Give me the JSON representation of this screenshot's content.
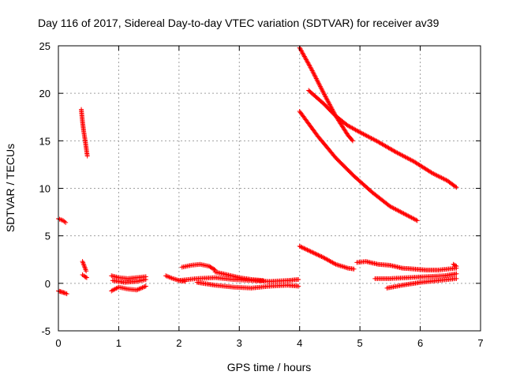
{
  "chart_data": {
    "type": "scatter",
    "title": "Day 116 of 2017, Sidereal Day-to-day VTEC variation (SDTVAR) for receiver av39",
    "xlabel": "GPS time / hours",
    "ylabel": "SDTVAR / TECUs",
    "xlim": [
      0,
      7
    ],
    "ylim": [
      -5,
      25
    ],
    "xticks": [
      0,
      1,
      2,
      3,
      4,
      5,
      6,
      7
    ],
    "yticks": [
      -5,
      0,
      5,
      10,
      15,
      20,
      25
    ],
    "grid": true,
    "marker": "+",
    "color": "#ff0000",
    "segments": [
      {
        "name": "arc-early-high",
        "x": [
          0.0,
          0.04,
          0.08,
          0.12
        ],
        "y": [
          6.8,
          6.7,
          6.6,
          6.4
        ]
      },
      {
        "name": "arc-early-low",
        "x": [
          0.0,
          0.05,
          0.1,
          0.14
        ],
        "y": [
          -0.8,
          -0.9,
          -1.0,
          -1.1
        ]
      },
      {
        "name": "arc-steep",
        "x": [
          0.38,
          0.4,
          0.42,
          0.44,
          0.46,
          0.48
        ],
        "y": [
          18.3,
          17.0,
          16.0,
          15.2,
          14.3,
          13.4
        ]
      },
      {
        "name": "arc-short-a",
        "x": [
          0.4,
          0.43,
          0.46
        ],
        "y": [
          2.3,
          1.8,
          1.3
        ]
      },
      {
        "name": "arc-short-b",
        "x": [
          0.4,
          0.44,
          0.47
        ],
        "y": [
          0.9,
          0.7,
          0.6
        ]
      },
      {
        "name": "arc-1a",
        "x": [
          0.88,
          1.0,
          1.15,
          1.3,
          1.45
        ],
        "y": [
          0.8,
          0.6,
          0.5,
          0.6,
          0.7
        ]
      },
      {
        "name": "arc-1b",
        "x": [
          0.88,
          1.0,
          1.15,
          1.3,
          1.45
        ],
        "y": [
          -0.8,
          -0.4,
          -0.6,
          -0.7,
          -0.3
        ]
      },
      {
        "name": "arc-1c",
        "x": [
          0.9,
          1.1,
          1.3,
          1.45
        ],
        "y": [
          0.3,
          0.1,
          0.2,
          0.4
        ]
      },
      {
        "name": "arc-2a",
        "x": [
          1.78,
          1.9,
          2.0,
          2.1
        ],
        "y": [
          0.8,
          0.5,
          0.3,
          0.2
        ]
      },
      {
        "name": "arc-2b",
        "x": [
          2.05,
          2.2,
          2.35,
          2.5,
          2.6
        ],
        "y": [
          1.7,
          1.9,
          2.0,
          1.8,
          1.4
        ]
      },
      {
        "name": "arc-2c",
        "x": [
          2.6,
          2.8,
          3.0,
          3.2,
          3.4
        ],
        "y": [
          1.2,
          0.9,
          0.6,
          0.4,
          0.3
        ]
      },
      {
        "name": "arc-2d",
        "x": [
          2.0,
          2.3,
          2.6,
          2.9,
          3.2,
          3.5,
          3.8,
          3.98
        ],
        "y": [
          0.3,
          0.5,
          0.6,
          0.4,
          0.3,
          0.2,
          0.3,
          0.4
        ]
      },
      {
        "name": "arc-2e",
        "x": [
          2.3,
          2.6,
          2.9,
          3.2,
          3.5,
          3.8,
          3.98
        ],
        "y": [
          0.1,
          -0.2,
          -0.4,
          -0.5,
          -0.3,
          -0.2,
          -0.3
        ]
      },
      {
        "name": "arc-4-upper",
        "x": [
          4.0,
          4.2,
          4.4,
          4.6,
          4.8,
          4.88
        ],
        "y": [
          24.8,
          22.5,
          20.0,
          17.6,
          15.6,
          15.0
        ]
      },
      {
        "name": "arc-4-mid",
        "x": [
          4.15,
          4.4,
          4.6,
          4.8,
          5.0,
          5.3,
          5.6,
          5.9,
          6.2,
          6.45,
          6.6
        ],
        "y": [
          20.3,
          18.9,
          17.6,
          16.6,
          15.9,
          14.9,
          13.8,
          12.8,
          11.6,
          10.8,
          10.1
        ]
      },
      {
        "name": "arc-4-lower",
        "x": [
          4.0,
          4.3,
          4.6,
          4.9,
          5.2,
          5.5,
          5.8,
          5.95
        ],
        "y": [
          18.1,
          15.5,
          13.2,
          11.3,
          9.6,
          8.1,
          7.1,
          6.6
        ]
      },
      {
        "name": "arc-4-decay",
        "x": [
          4.0,
          4.2,
          4.4,
          4.6,
          4.8,
          4.9
        ],
        "y": [
          3.9,
          3.3,
          2.7,
          2.0,
          1.6,
          1.5
        ]
      },
      {
        "name": "arc-5a",
        "x": [
          4.95,
          5.1,
          5.3,
          5.5,
          5.7,
          5.9,
          6.1,
          6.3,
          6.6
        ],
        "y": [
          2.2,
          2.3,
          2.0,
          1.9,
          1.6,
          1.5,
          1.4,
          1.4,
          1.6
        ]
      },
      {
        "name": "arc-5b",
        "x": [
          5.25,
          5.5,
          5.8,
          6.1,
          6.4,
          6.6
        ],
        "y": [
          0.5,
          0.5,
          0.6,
          0.7,
          0.8,
          1.0
        ]
      },
      {
        "name": "arc-5c",
        "x": [
          5.45,
          5.7,
          6.0,
          6.3,
          6.6
        ],
        "y": [
          -0.5,
          -0.2,
          0.1,
          0.3,
          0.5
        ]
      },
      {
        "name": "arc-5d",
        "x": [
          6.55,
          6.6
        ],
        "y": [
          2.0,
          1.8
        ]
      }
    ]
  }
}
